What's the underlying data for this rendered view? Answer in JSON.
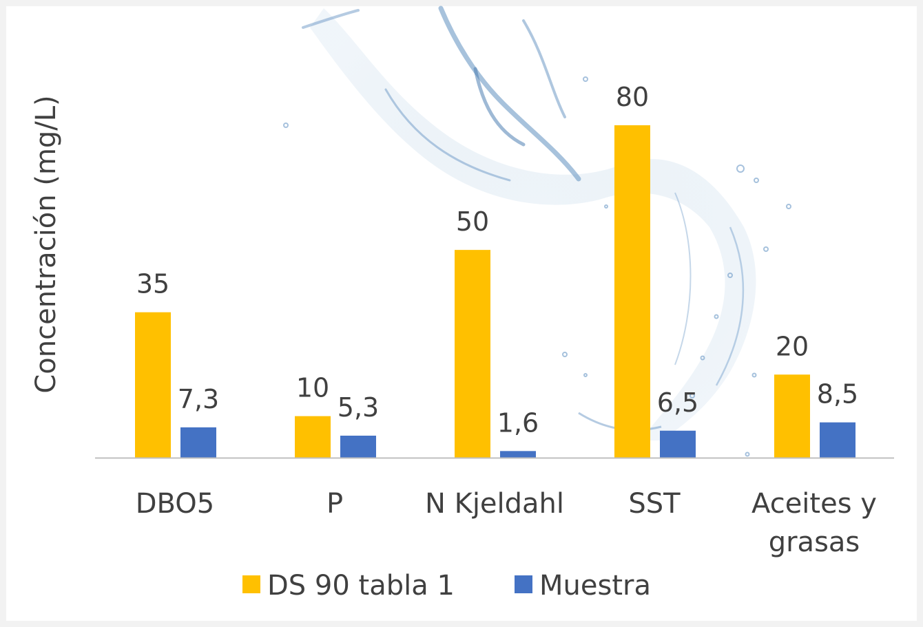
{
  "chart_data": {
    "type": "bar",
    "ylabel": "Concentración (mg/L)",
    "categories": [
      "DBO5",
      "P",
      "N Kjeldahl",
      "SST",
      "Aceites y grasas"
    ],
    "category_lines": [
      [
        "DBO5"
      ],
      [
        "P"
      ],
      [
        "N Kjeldahl"
      ],
      [
        "SST"
      ],
      [
        "Aceites y",
        "grasas"
      ]
    ],
    "series": [
      {
        "name": "DS 90 tabla 1",
        "values": [
          35,
          10,
          50,
          80,
          20
        ],
        "labels": [
          "35",
          "10",
          "50",
          "80",
          "20"
        ],
        "color": "#ffc000"
      },
      {
        "name": "Muestra",
        "values": [
          7.3,
          5.3,
          1.6,
          6.5,
          8.5
        ],
        "labels": [
          "7,3",
          "5,3",
          "1,6",
          "6,5",
          "8,5"
        ],
        "color": "#4472c4"
      }
    ],
    "ylim": [
      0,
      80
    ],
    "grid": false,
    "legend": "bottom",
    "axis_color": "#bfbfbf",
    "text_color": "#404040",
    "background_decoration": "water-splash"
  }
}
